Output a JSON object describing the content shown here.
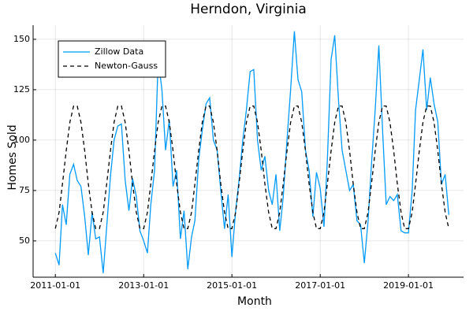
{
  "chart_data": {
    "type": "line",
    "title": "Herndon, Virginia",
    "x_label": "Month",
    "y_label": "Homes Sold",
    "x": [
      "2011-01-01",
      "2011-02-01",
      "2011-03-01",
      "2011-04-01",
      "2011-05-01",
      "2011-06-01",
      "2011-07-01",
      "2011-08-01",
      "2011-09-01",
      "2011-10-01",
      "2011-11-01",
      "2011-12-01",
      "2012-01-01",
      "2012-02-01",
      "2012-03-01",
      "2012-04-01",
      "2012-05-01",
      "2012-06-01",
      "2012-07-01",
      "2012-08-01",
      "2012-09-01",
      "2012-10-01",
      "2012-11-01",
      "2012-12-01",
      "2013-01-01",
      "2013-02-01",
      "2013-03-01",
      "2013-04-01",
      "2013-05-01",
      "2013-06-01",
      "2013-07-01",
      "2013-08-01",
      "2013-09-01",
      "2013-10-01",
      "2013-11-01",
      "2013-12-01",
      "2014-01-01",
      "2014-02-01",
      "2014-03-01",
      "2014-04-01",
      "2014-05-01",
      "2014-06-01",
      "2014-07-01",
      "2014-08-01",
      "2014-09-01",
      "2014-10-01",
      "2014-11-01",
      "2014-12-01",
      "2015-01-01",
      "2015-02-01",
      "2015-03-01",
      "2015-04-01",
      "2015-05-01",
      "2015-06-01",
      "2015-07-01",
      "2015-08-01",
      "2015-09-01",
      "2015-10-01",
      "2015-11-01",
      "2015-12-01",
      "2016-01-01",
      "2016-02-01",
      "2016-03-01",
      "2016-04-01",
      "2016-05-01",
      "2016-06-01",
      "2016-07-01",
      "2016-08-01",
      "2016-09-01",
      "2016-10-01",
      "2016-11-01",
      "2016-12-01",
      "2017-01-01",
      "2017-02-01",
      "2017-03-01",
      "2017-04-01",
      "2017-05-01",
      "2017-06-01",
      "2017-07-01",
      "2017-08-01",
      "2017-09-01",
      "2017-10-01",
      "2017-11-01",
      "2017-12-01",
      "2018-01-01",
      "2018-02-01",
      "2018-03-01",
      "2018-04-01",
      "2018-05-01",
      "2018-06-01",
      "2018-07-01",
      "2018-08-01",
      "2018-09-01",
      "2018-10-01",
      "2018-11-01",
      "2018-12-01",
      "2019-01-01",
      "2019-02-01",
      "2019-03-01",
      "2019-04-01",
      "2019-05-01",
      "2019-06-01",
      "2019-07-01",
      "2019-08-01",
      "2019-09-01",
      "2019-10-01",
      "2019-11-01",
      "2019-12-01"
    ],
    "series": [
      {
        "name": "Zillow Data",
        "color": "#009af9",
        "dash": "none",
        "values": [
          44,
          38,
          68,
          58,
          83,
          88,
          80,
          77,
          62,
          43,
          64,
          51,
          52,
          34,
          57,
          82,
          100,
          107,
          108,
          80,
          65,
          81,
          72,
          55,
          50,
          44,
          68,
          85,
          140,
          125,
          95,
          110,
          77,
          85,
          51,
          65,
          36,
          52,
          60,
          90,
          105,
          118,
          121,
          100,
          95,
          75,
          56,
          73,
          42,
          65,
          80,
          100,
          115,
          134,
          135,
          100,
          85,
          92,
          75,
          68,
          83,
          55,
          72,
          100,
          125,
          154,
          130,
          124,
          95,
          85,
          62,
          84,
          76,
          57,
          90,
          140,
          152,
          120,
          95,
          85,
          75,
          78,
          60,
          58,
          39,
          60,
          88,
          115,
          147,
          105,
          68,
          72,
          70,
          73,
          55,
          54,
          54,
          75,
          115,
          130,
          145,
          115,
          131,
          118,
          109,
          78,
          83,
          63
        ]
      },
      {
        "name": "Newton-Gauss",
        "color": "#000000",
        "dash": "5,4",
        "values": [
          56.1,
          64.2,
          78.3,
          94.7,
          108.8,
          116.9,
          116.9,
          108.8,
          94.7,
          78.3,
          64.2,
          56.1,
          56.1,
          64.2,
          78.3,
          94.7,
          108.8,
          116.9,
          116.9,
          108.8,
          94.7,
          78.3,
          64.2,
          56.1,
          56.1,
          64.2,
          78.3,
          94.7,
          108.8,
          116.9,
          116.9,
          108.8,
          94.7,
          78.3,
          64.2,
          56.1,
          56.1,
          64.2,
          78.3,
          94.7,
          108.8,
          116.9,
          116.9,
          108.8,
          94.7,
          78.3,
          64.2,
          56.1,
          56.1,
          64.2,
          78.3,
          94.7,
          108.8,
          116.9,
          116.9,
          108.8,
          94.7,
          78.3,
          64.2,
          56.1,
          56.1,
          64.2,
          78.3,
          94.7,
          108.8,
          116.9,
          116.9,
          108.8,
          94.7,
          78.3,
          64.2,
          56.1,
          56.1,
          64.2,
          78.3,
          94.7,
          108.8,
          116.9,
          116.9,
          108.8,
          94.7,
          78.3,
          64.2,
          56.1,
          56.1,
          64.2,
          78.3,
          94.7,
          108.8,
          116.9,
          116.9,
          108.8,
          94.7,
          78.3,
          64.2,
          56.1,
          56.1,
          64.2,
          78.3,
          94.7,
          108.8,
          116.9,
          116.9,
          108.8,
          94.7,
          78.3,
          64.2,
          56.1
        ]
      }
    ],
    "xlim": [
      "2010-07-01",
      "2020-04-01"
    ],
    "xticks": [
      "2011-01-01",
      "2013-01-01",
      "2015-01-01",
      "2017-01-01",
      "2019-01-01"
    ],
    "ylim": [
      32,
      157
    ],
    "yticks": [
      50,
      75,
      100,
      125,
      150
    ],
    "grid": true,
    "legend": "top-left"
  }
}
